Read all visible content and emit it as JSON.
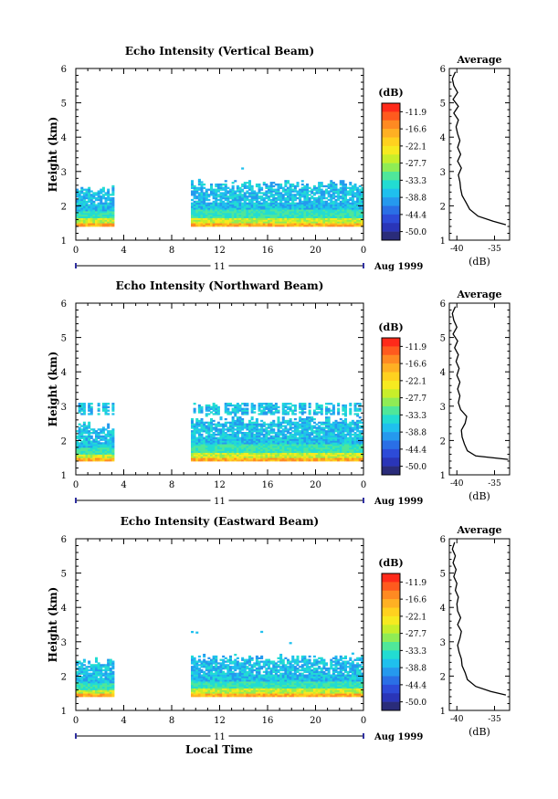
{
  "figure": {
    "xlabel": "Local Time",
    "date_label": "Aug 1999",
    "day_label": "11",
    "colorbar": {
      "unit": "(dB)",
      "labels": [
        "-11.9",
        "-16.6",
        "-22.1",
        "-27.7",
        "-33.3",
        "-38.8",
        "-44.4",
        "-50.0"
      ],
      "colors": [
        "#ff2a1a",
        "#ff5a1e",
        "#ff8a22",
        "#ffb023",
        "#ffd11f",
        "#f6ea20",
        "#c8ee2a",
        "#8fec55",
        "#4fe79a",
        "#22dcd2",
        "#1fc0ee",
        "#2599ee",
        "#2a6fe6",
        "#2d4bd8",
        "#2a35b8",
        "#2a2c7a"
      ]
    }
  },
  "chart_data": [
    {
      "type": "heatmap",
      "title": "Echo Intensity (Vertical Beam)",
      "xlabel": "",
      "ylabel": "Height (km)",
      "xlim": [
        0,
        24
      ],
      "ylim": [
        1,
        6
      ],
      "xticks": [
        "0",
        "4",
        "8",
        "12",
        "16",
        "20",
        "0"
      ],
      "yticks": [
        "1",
        "2",
        "3",
        "4",
        "5",
        "6"
      ],
      "data_blocks": [
        {
          "t_start": 0.0,
          "t_end": 3.1,
          "h_min": 1.4,
          "h_max": 2.5
        },
        {
          "t_start": 9.6,
          "t_end": 24.0,
          "h_min": 1.4,
          "h_max": 2.6,
          "scattered_echo_up_to": 3.1
        }
      ],
      "profile": {
        "title": "Average",
        "xlabel": "(dB)",
        "xticks": [
          "-40",
          "-35"
        ],
        "xlim": [
          -41,
          -33
        ],
        "ylim": [
          1,
          6
        ],
        "heights": [
          1.45,
          1.55,
          1.7,
          1.9,
          2.1,
          2.3,
          2.5,
          2.7,
          2.9,
          3.1,
          3.3,
          3.5,
          3.7,
          3.9,
          4.1,
          4.3,
          4.5,
          4.7,
          4.9,
          5.1,
          5.3,
          5.5,
          5.7,
          5.9
        ],
        "values": [
          -33.5,
          -35.2,
          -37.2,
          -38.3,
          -38.8,
          -39.3,
          -39.5,
          -39.6,
          -39.8,
          -39.4,
          -39.9,
          -39.5,
          -39.9,
          -39.6,
          -39.9,
          -40.1,
          -39.8,
          -40.4,
          -39.8,
          -40.5,
          -39.9,
          -40.4,
          -40.6,
          -40.2
        ]
      }
    },
    {
      "type": "heatmap",
      "title": "Echo Intensity (Northward Beam)",
      "xlabel": "",
      "ylabel": "Height (km)",
      "xlim": [
        0,
        24
      ],
      "ylim": [
        1,
        6
      ],
      "xticks": [
        "0",
        "4",
        "8",
        "12",
        "16",
        "20",
        "0"
      ],
      "yticks": [
        "1",
        "2",
        "3",
        "4",
        "5",
        "6"
      ],
      "data_blocks": [
        {
          "t_start": 0.0,
          "t_end": 3.1,
          "h_min": 1.4,
          "h_max": 2.4,
          "upper_layer": [
            2.75,
            3.05
          ]
        },
        {
          "t_start": 9.6,
          "t_end": 24.0,
          "h_min": 1.4,
          "h_max": 2.6,
          "upper_layer": [
            2.75,
            3.05
          ]
        }
      ],
      "profile": {
        "title": "Average",
        "xlabel": "(dB)",
        "xticks": [
          "-40",
          "-35"
        ],
        "xlim": [
          -41,
          -33
        ],
        "ylim": [
          1,
          6
        ],
        "heights": [
          1.45,
          1.55,
          1.7,
          1.9,
          2.1,
          2.3,
          2.5,
          2.7,
          2.9,
          3.1,
          3.3,
          3.5,
          3.7,
          3.9,
          4.1,
          4.3,
          4.5,
          4.7,
          4.9,
          5.1,
          5.3,
          5.5,
          5.7,
          5.9
        ],
        "values": [
          -33.2,
          -37.5,
          -38.6,
          -39.0,
          -39.3,
          -39.4,
          -38.9,
          -38.7,
          -39.5,
          -39.8,
          -39.6,
          -39.9,
          -39.6,
          -40.0,
          -39.7,
          -40.1,
          -39.8,
          -40.3,
          -39.9,
          -40.5,
          -40.0,
          -40.4,
          -40.6,
          -40.2
        ]
      }
    },
    {
      "type": "heatmap",
      "title": "Echo Intensity (Eastward Beam)",
      "xlabel": "Local Time",
      "ylabel": "Height (km)",
      "xlim": [
        0,
        24
      ],
      "ylim": [
        1,
        6
      ],
      "xticks": [
        "0",
        "4",
        "8",
        "12",
        "16",
        "20",
        "0"
      ],
      "yticks": [
        "1",
        "2",
        "3",
        "4",
        "5",
        "6"
      ],
      "data_blocks": [
        {
          "t_start": 0.0,
          "t_end": 3.1,
          "h_min": 1.4,
          "h_max": 2.4
        },
        {
          "t_start": 9.6,
          "t_end": 24.0,
          "h_min": 1.4,
          "h_max": 2.5,
          "scattered_echo_up_to": 3.3
        }
      ],
      "profile": {
        "title": "Average",
        "xlabel": "(dB)",
        "xticks": [
          "-40",
          "-35"
        ],
        "xlim": [
          -41,
          -33
        ],
        "ylim": [
          1,
          6
        ],
        "heights": [
          1.45,
          1.55,
          1.7,
          1.9,
          2.1,
          2.3,
          2.5,
          2.7,
          2.9,
          3.1,
          3.3,
          3.5,
          3.7,
          3.9,
          4.1,
          4.3,
          4.5,
          4.7,
          4.9,
          5.1,
          5.3,
          5.5,
          5.7,
          5.9
        ],
        "values": [
          -33.5,
          -35.5,
          -37.5,
          -38.6,
          -38.9,
          -39.3,
          -39.4,
          -39.7,
          -39.9,
          -39.6,
          -39.4,
          -39.9,
          -39.5,
          -39.9,
          -40.0,
          -39.8,
          -40.2,
          -40.0,
          -40.4,
          -40.1,
          -40.5,
          -40.2,
          -40.6,
          -40.3
        ]
      }
    }
  ]
}
